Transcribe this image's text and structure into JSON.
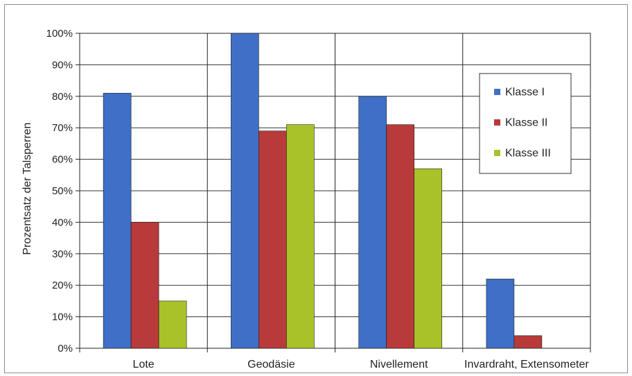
{
  "chart_data": {
    "type": "bar",
    "ylabel": "Prozentsatz der Talsperren",
    "xlabel": "",
    "categories": [
      "Lote",
      "Geodäsie",
      "Nivellement",
      "Invardraht, Extensometer"
    ],
    "series": [
      {
        "name": "Klasse I",
        "color": "#3f6fc6",
        "values": [
          81,
          100,
          80,
          22
        ]
      },
      {
        "name": "Klasse II",
        "color": "#b83a3a",
        "values": [
          40,
          69,
          71,
          4
        ]
      },
      {
        "name": "Klasse III",
        "color": "#aac22a",
        "values": [
          15,
          71,
          57,
          0
        ]
      }
    ],
    "ylim": [
      0,
      100
    ],
    "yticks": [
      "0%",
      "10%",
      "20%",
      "30%",
      "40%",
      "50%",
      "60%",
      "70%",
      "80%",
      "90%",
      "100%"
    ],
    "grid": true,
    "legend_position": "right"
  }
}
